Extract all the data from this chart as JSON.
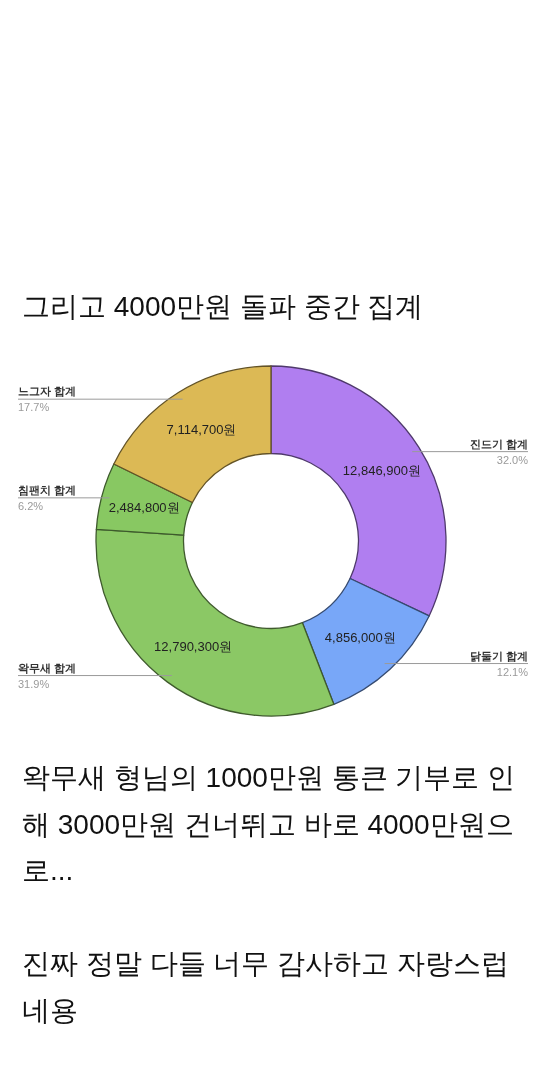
{
  "chart_data": {
    "type": "donut",
    "title": "그리고 4000만원 돌파 중간 집계",
    "categories": [
      "진드기 합계",
      "닭둘기 합계",
      "왁무새 합계",
      "침팬치 합계",
      "느그자 합계"
    ],
    "values": [
      12846900,
      4856000,
      12790300,
      2484800,
      7114700
    ],
    "value_labels": [
      "12,846,900원",
      "4,856,000원",
      "12,790,300원",
      "2,484,800원",
      "7,114,700원"
    ],
    "colors": [
      "#b07ef0",
      "#78a7f8",
      "#8bc865",
      "#88c862",
      "#dcb955"
    ],
    "annotations": [
      {
        "text": "32.0%",
        "x": "진드기 합계"
      },
      {
        "text": "12.1%",
        "x": "닭둘기 합계"
      },
      {
        "text": "31.9%",
        "x": "왁무새 합계"
      },
      {
        "text": "6.2%",
        "x": "침팬치 합계"
      },
      {
        "text": "17.7%",
        "x": "느그자 합계"
      },
      "왁무새 형님의 1000만원 통큰 기부로 인해 3000만원 건너뛰고 바로 4000만원으로...",
      "진짜 정말 다들 너무 감사하고 자랑스럽네용"
    ]
  }
}
